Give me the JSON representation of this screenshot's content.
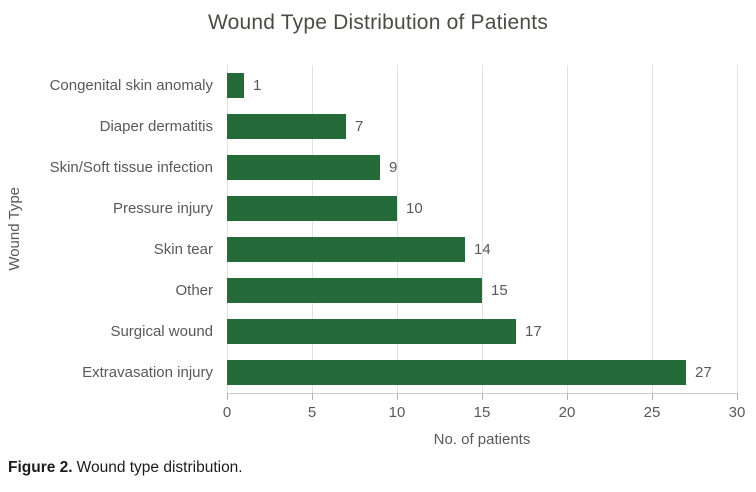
{
  "chart_data": {
    "type": "bar",
    "orientation": "horizontal",
    "title": "Wound Type Distribution of Patients",
    "categories": [
      "Congenital skin anomaly",
      "Diaper dermatitis",
      "Skin/Soft tissue infection",
      "Pressure injury",
      "Skin tear",
      "Other",
      "Surgical wound",
      "Extravasation injury"
    ],
    "values": [
      1,
      7,
      9,
      10,
      14,
      15,
      17,
      27
    ],
    "xlabel": "No. of patients",
    "ylabel": "Wound Type",
    "xlim": [
      0,
      30
    ],
    "xticks": [
      0,
      5,
      10,
      15,
      20,
      25,
      30
    ],
    "grid": "vertical",
    "legend": "none",
    "bar_color": "#256b3a",
    "gridline_color": "#e4e2e0",
    "axis_line_color": "#cfccc9",
    "tick_color": "#b7b3b0",
    "text_color": "#595959"
  },
  "caption": {
    "label": "Figure 2.",
    "text": "Wound type distribution."
  }
}
